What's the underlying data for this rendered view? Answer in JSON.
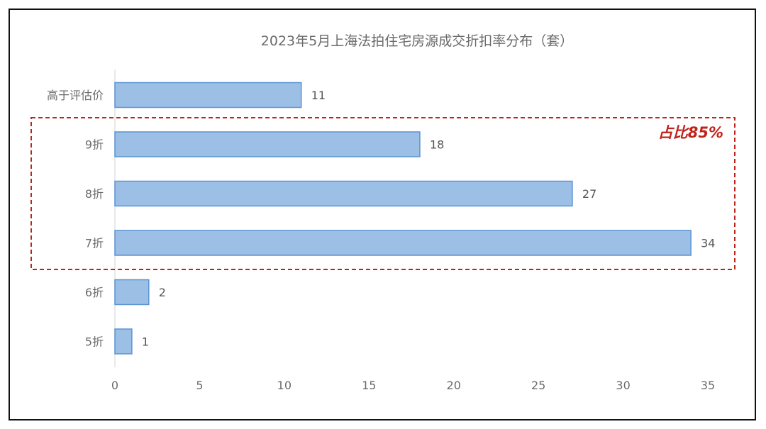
{
  "chart_data": {
    "type": "bar",
    "orientation": "horizontal",
    "title": "2023年5月上海法拍住宅房源成交折扣率分布（套）",
    "categories": [
      "高于评估价",
      "9折",
      "8折",
      "7折",
      "6折",
      "5折"
    ],
    "values": [
      11,
      18,
      27,
      34,
      2,
      1
    ],
    "xlim": [
      0,
      35
    ],
    "xticks": [
      0,
      5,
      10,
      15,
      20,
      25,
      30,
      35
    ],
    "grid": false,
    "bar_color": "#9cbfe6",
    "bar_edge_color": "#5b93d3",
    "annotation": {
      "text": "占比85%",
      "categories": [
        "9折",
        "8折",
        "7折"
      ],
      "color": "#c0231a",
      "style": "dashed-box"
    }
  }
}
